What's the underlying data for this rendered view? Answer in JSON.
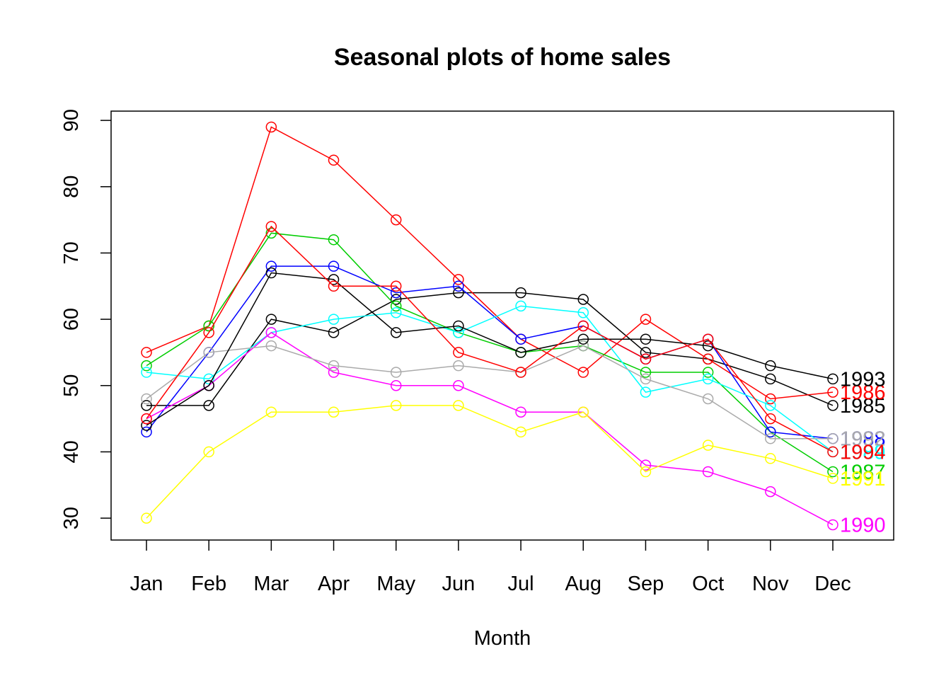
{
  "chart_data": {
    "type": "line",
    "title": "Seasonal plots of home sales",
    "x_label": "Month",
    "categories": [
      "Jan",
      "Feb",
      "Mar",
      "Apr",
      "May",
      "Jun",
      "Jul",
      "Aug",
      "Sep",
      "Oct",
      "Nov",
      "Dec"
    ],
    "ylim": [
      26.7,
      91.4
    ],
    "yticks": [
      30,
      40,
      50,
      60,
      70,
      80,
      90
    ],
    "series": [
      {
        "name": "1985",
        "color": "#000000",
        "values": [
          47,
          47,
          60,
          58,
          63,
          64,
          64,
          63,
          55,
          54,
          51,
          47
        ]
      },
      {
        "name": "1986",
        "color": "#ff0000",
        "values": [
          55,
          59,
          89,
          84,
          75,
          66,
          57,
          52,
          60,
          54,
          48,
          49
        ]
      },
      {
        "name": "1987",
        "color": "#00cd00",
        "values": [
          53,
          59,
          73,
          72,
          62,
          58,
          55,
          56,
          52,
          52,
          43,
          37
        ]
      },
      {
        "name": "1988",
        "color": "#0000ff",
        "values": [
          43,
          55,
          68,
          68,
          64,
          65,
          57,
          59,
          54,
          57,
          43,
          42
        ]
      },
      {
        "name": "1989",
        "color": "#00ffff",
        "values": [
          52,
          51,
          58,
          60,
          61,
          58,
          62,
          61,
          49,
          51,
          47,
          40
        ]
      },
      {
        "name": "1990",
        "color": "#ff00ff",
        "values": [
          45,
          50,
          58,
          52,
          50,
          50,
          46,
          46,
          38,
          37,
          34,
          29
        ]
      },
      {
        "name": "1991",
        "color": "#ffff00",
        "values": [
          30,
          40,
          46,
          46,
          47,
          47,
          43,
          46,
          37,
          41,
          39,
          36
        ]
      },
      {
        "name": "1992",
        "color": "#aaaaaa",
        "values": [
          48,
          55,
          56,
          53,
          52,
          53,
          52,
          56,
          51,
          48,
          42,
          42
        ]
      },
      {
        "name": "1993",
        "color": "#000000",
        "values": [
          44,
          50,
          67,
          66,
          58,
          59,
          55,
          57,
          57,
          56,
          53,
          51
        ]
      },
      {
        "name": "1994",
        "color": "#ff0000",
        "values": [
          45,
          58,
          74,
          65,
          65,
          55,
          52,
          59,
          54,
          57,
          45,
          40
        ]
      }
    ]
  }
}
